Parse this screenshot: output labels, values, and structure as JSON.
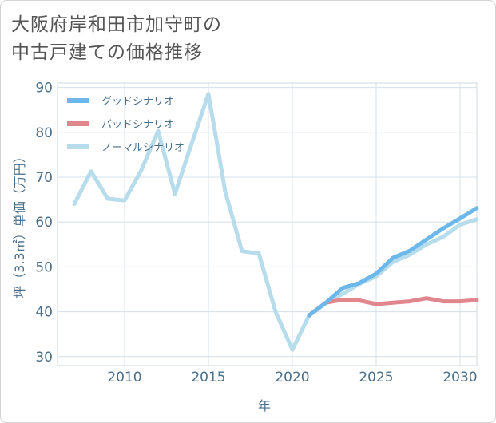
{
  "title_line1": "大阪府岸和田市加守町の",
  "title_line2": "中古戸建ての価格推移",
  "chart_data": {
    "type": "line",
    "xlabel": "年",
    "ylabel": "坪（3.3㎡）単価（万円）",
    "xlim": [
      2006,
      2031
    ],
    "ylim": [
      28,
      91
    ],
    "xticks": [
      2010,
      2015,
      2020,
      2025,
      2030
    ],
    "yticks": [
      30,
      40,
      50,
      60,
      70,
      80,
      90
    ],
    "grid": true,
    "legend_position": "top-left",
    "series": [
      {
        "name": "グッドシナリオ",
        "color": "#6cb8ea",
        "x": [
          2021,
          2022,
          2023,
          2024,
          2025,
          2026,
          2027,
          2028,
          2029,
          2030,
          2031
        ],
        "y": [
          39.2,
          42.0,
          45.3,
          46.4,
          48.5,
          52.0,
          53.6,
          56.1,
          58.6,
          60.8,
          63.1
        ]
      },
      {
        "name": "バッドシナリオ",
        "color": "#e0868c",
        "x": [
          2021,
          2022,
          2023,
          2024,
          2025,
          2026,
          2027,
          2028,
          2029,
          2030,
          2031
        ],
        "y": [
          39.2,
          42.0,
          42.7,
          42.5,
          41.7,
          42.0,
          42.3,
          43.0,
          42.3,
          42.3,
          42.6
        ]
      },
      {
        "name": "ノーマルシナリオ",
        "color": "#b7dcec",
        "x": [
          2007,
          2008,
          2009,
          2010,
          2011,
          2012,
          2013,
          2014,
          2015,
          2016,
          2017,
          2018,
          2019,
          2020,
          2021,
          2022,
          2023,
          2024,
          2025,
          2026,
          2027,
          2028,
          2029,
          2030,
          2031
        ],
        "y": [
          64.0,
          71.3,
          65.2,
          64.8,
          71.6,
          80.3,
          66.3,
          77.5,
          88.6,
          66.8,
          53.5,
          53.0,
          40.0,
          31.5,
          39.2,
          42.0,
          44.0,
          46.2,
          47.9,
          51.1,
          52.7,
          55.0,
          56.7,
          59.4,
          60.6
        ]
      }
    ]
  }
}
